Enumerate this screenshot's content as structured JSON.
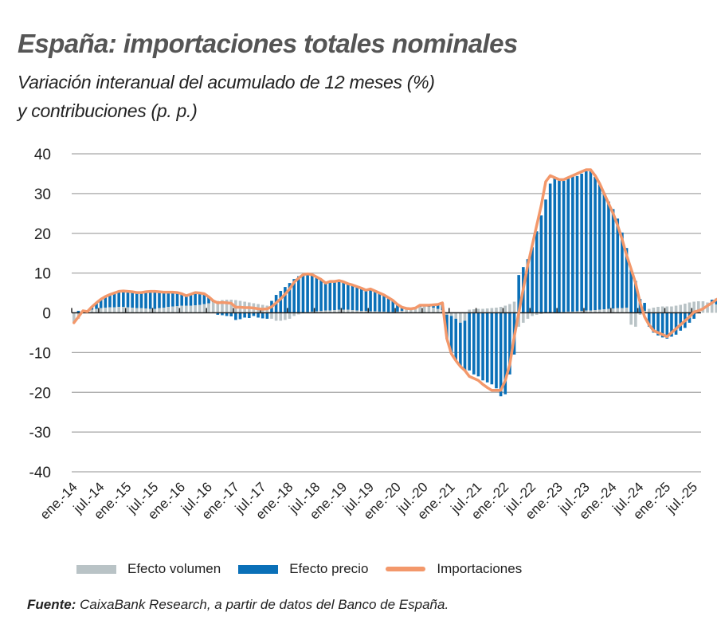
{
  "header": {
    "title": "España: importaciones totales nominales",
    "subtitle_line1": "Variación interanual del acumulado de 12 meses (%)",
    "subtitle_line2": "y contribuciones (p. p.)"
  },
  "legend": {
    "volume": "Efecto volumen",
    "price": "Efecto precio",
    "imports": "Importaciones"
  },
  "source": {
    "label": "Fuente:",
    "text": "CaixaBank Research, a partir de datos del Banco de España."
  },
  "colors": {
    "volume": "#b9c3c6",
    "price": "#0a70b8",
    "imports": "#f3986b",
    "grid": "#a6a6a6",
    "axis": "#222222"
  },
  "chart_data": {
    "type": "bar",
    "stacked": true,
    "title": "España: importaciones totales nominales",
    "subtitle": "Variación interanual del acumulado de 12 meses (%) y contribuciones (p. p.)",
    "xlabel": "",
    "ylabel": "",
    "ylim": [
      -40,
      40
    ],
    "yticks": [
      40,
      30,
      20,
      10,
      0,
      -10,
      -20,
      -30,
      -40
    ],
    "grid": true,
    "legend_position": "bottom",
    "xtick_labels": [
      "ene.-14",
      "jul.-14",
      "ene.-15",
      "jul.-15",
      "ene.-16",
      "jul.-16",
      "ene.-17",
      "jul.-17",
      "ene.-18",
      "jul.-18",
      "ene.-19",
      "jul.-19",
      "ene.-20",
      "jul.-20",
      "ene.-21",
      "jul.-21",
      "ene.-22",
      "jul.-22",
      "ene.-23",
      "jul.-23",
      "ene.-24",
      "jul.-24",
      "ene.-25",
      "jul.-25"
    ],
    "start_month": "2014-01",
    "end_month": "2025-09",
    "series": [
      {
        "name": "Efecto volumen",
        "type": "bar",
        "values": [
          -2.5,
          -1.5,
          0.5,
          0.3,
          0.8,
          1.0,
          1.2,
          1.3,
          1.4,
          1.4,
          1.5,
          1.5,
          1.4,
          1.3,
          1.2,
          1.2,
          1.1,
          1.0,
          1.0,
          1.2,
          1.3,
          1.5,
          1.6,
          1.7,
          1.8,
          1.8,
          1.8,
          1.9,
          2.0,
          2.2,
          2.4,
          2.7,
          3.0,
          3.2,
          3.3,
          3.3,
          3.2,
          3.0,
          2.8,
          2.6,
          2.4,
          2.2,
          2.0,
          1.8,
          -1.5,
          -2.0,
          -2.0,
          -1.8,
          -1.5,
          -0.8,
          -0.4,
          0.0,
          0.2,
          0.3,
          0.4,
          0.5,
          0.6,
          0.6,
          0.7,
          0.8,
          0.8,
          0.8,
          0.7,
          0.6,
          0.5,
          0.5,
          0.4,
          0.4,
          0.3,
          0.3,
          0.2,
          0.2,
          0.3,
          0.5,
          0.8,
          1.0,
          1.2,
          1.5,
          1.6,
          1.5,
          1.3,
          1.0,
          0.7,
          -0.5,
          -0.8,
          -1.5,
          -2.5,
          -2.0,
          0.8,
          0.9,
          1.0,
          1.0,
          1.1,
          1.2,
          1.3,
          1.5,
          1.8,
          2.2,
          2.8,
          -3.5,
          -2.5,
          -1.5,
          -0.8,
          -0.5,
          -0.3,
          0.0,
          0.0,
          0.1,
          0.1,
          0.2,
          0.3,
          0.3,
          0.4,
          0.5,
          0.6,
          0.6,
          0.7,
          0.8,
          0.9,
          1.0,
          1.1,
          1.2,
          1.2,
          1.3,
          -3.0,
          -3.5,
          -0.5,
          0.5,
          1.0,
          1.3,
          1.5,
          1.6,
          1.6,
          1.6,
          1.8,
          2.0,
          2.3,
          2.6,
          2.8,
          2.9,
          2.9,
          2.6,
          2.3,
          2.1,
          2.0
        ]
      },
      {
        "name": "Efecto precio",
        "type": "bar",
        "values": [
          0.0,
          0.5,
          0.0,
          0.0,
          0.7,
          1.5,
          2.2,
          2.8,
          3.2,
          3.6,
          3.9,
          4.0,
          4.0,
          4.0,
          3.9,
          3.9,
          4.2,
          4.4,
          4.4,
          4.1,
          3.9,
          3.7,
          3.6,
          3.4,
          3.0,
          2.5,
          2.9,
          3.2,
          3.0,
          2.6,
          1.6,
          0.3,
          -0.5,
          -0.6,
          -0.8,
          -0.9,
          -1.8,
          -1.6,
          -1.2,
          -1.3,
          -0.8,
          -1.2,
          -1.4,
          -1.5,
          3.0,
          4.5,
          5.5,
          6.5,
          7.5,
          8.5,
          9.2,
          9.7,
          9.6,
          9.3,
          8.7,
          7.9,
          6.9,
          7.3,
          7.2,
          7.3,
          7.0,
          6.5,
          6.3,
          6.0,
          5.7,
          5.2,
          5.6,
          5.1,
          4.7,
          4.2,
          3.6,
          2.9,
          1.8,
          0.9,
          0.3,
          0.0,
          0.0,
          0.4,
          0.3,
          0.4,
          0.7,
          1.1,
          1.8,
          -6.0,
          -9.5,
          -10.5,
          -11.0,
          -12.5,
          -14.5,
          -15.5,
          -16.0,
          -17.0,
          -17.5,
          -18.0,
          -19.0,
          -21.0,
          -20.5,
          -15.5,
          -10.5,
          9.5,
          11.5,
          13.5,
          16.5,
          20.5,
          24.5,
          28.5,
          32.5,
          34.0,
          33.5,
          33.0,
          33.5,
          34.0,
          34.0,
          34.5,
          35.0,
          35.0,
          33.5,
          31.5,
          29.0,
          27.0,
          25.0,
          22.5,
          19.0,
          15.0,
          11.0,
          8.0,
          3.5,
          2.0,
          -3.5,
          -5.0,
          -5.7,
          -6.2,
          -6.5,
          -6.0,
          -5.5,
          -4.5,
          -3.8,
          -2.5,
          -1.5,
          0.0,
          0.0,
          0.0,
          1.0,
          1.5,
          2.5,
          3.5,
          2.5,
          2.5,
          3.5,
          3.2
        ]
      },
      {
        "name": "Importaciones",
        "type": "line",
        "values": [
          -2.5,
          -1.0,
          0.5,
          0.3,
          1.5,
          2.5,
          3.4,
          4.1,
          4.6,
          5.0,
          5.4,
          5.5,
          5.4,
          5.3,
          5.1,
          5.1,
          5.3,
          5.4,
          5.4,
          5.3,
          5.2,
          5.2,
          5.2,
          5.1,
          4.8,
          4.3,
          4.7,
          5.1,
          5.0,
          4.8,
          4.0,
          3.0,
          2.5,
          2.6,
          2.5,
          2.4,
          1.4,
          1.4,
          1.3,
          1.3,
          1.2,
          1.0,
          0.9,
          1.0,
          1.5,
          2.5,
          3.5,
          4.7,
          6.0,
          7.7,
          8.7,
          9.6,
          9.8,
          9.6,
          9.0,
          8.4,
          7.5,
          7.9,
          7.9,
          8.1,
          7.8,
          7.3,
          7.0,
          6.6,
          6.2,
          5.7,
          6.0,
          5.5,
          5.0,
          4.5,
          3.8,
          3.1,
          2.1,
          1.4,
          1.1,
          1.0,
          1.2,
          1.9,
          1.9,
          1.9,
          2.0,
          2.1,
          2.5,
          -6.5,
          -10.3,
          -12.0,
          -13.5,
          -14.5,
          -16.0,
          -16.5,
          -17.0,
          -18.0,
          -18.8,
          -19.5,
          -19.5,
          -19.5,
          -17.0,
          -13.0,
          -6.0,
          0.0,
          6.0,
          12.0,
          17.0,
          22.0,
          27.0,
          33.0,
          34.5,
          34.0,
          33.5,
          33.5,
          34.0,
          34.5,
          35.0,
          35.5,
          36.0,
          36.0,
          34.5,
          32.5,
          30.0,
          27.5,
          25.0,
          22.0,
          18.5,
          14.5,
          11.0,
          7.5,
          2.5,
          -1.0,
          -3.0,
          -4.5,
          -5.0,
          -5.5,
          -6.0,
          -5.0,
          -4.0,
          -3.0,
          -2.0,
          -1.0,
          0.2,
          0.5,
          1.0,
          1.8,
          2.5,
          3.3,
          4.0,
          5.5,
          4.2,
          4.5,
          5.0,
          5.2,
          4.8
        ]
      }
    ]
  }
}
